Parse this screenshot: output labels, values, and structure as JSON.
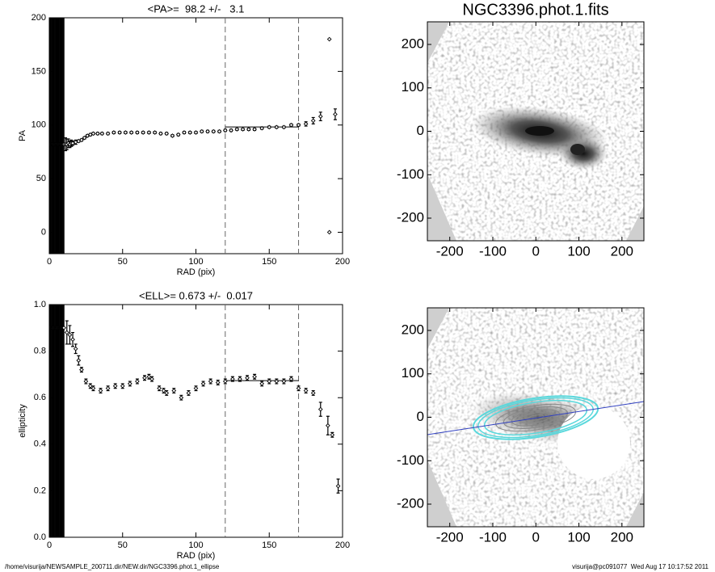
{
  "chart_data": [
    {
      "type": "scatter",
      "title": "<PA>=  98.2 +/-   3.1",
      "xlabel": "RAD (pix)",
      "ylabel": "PA",
      "xlim": [
        0,
        200
      ],
      "ylim": [
        -20,
        200
      ],
      "xticks": [
        0,
        50,
        100,
        150,
        200
      ],
      "yticks": [
        0,
        50,
        100,
        150,
        200
      ],
      "x": [
        0.5,
        1,
        1.5,
        2,
        2.5,
        3,
        3.5,
        4,
        4.5,
        5,
        5.5,
        6,
        6.5,
        7,
        7.5,
        8,
        8.5,
        9,
        9.5,
        10,
        11,
        12,
        13,
        14,
        15,
        16,
        18,
        20,
        22,
        24,
        26,
        28,
        30,
        33,
        36,
        40,
        44,
        48,
        52,
        56,
        60,
        64,
        68,
        72,
        76,
        80,
        84,
        88,
        92,
        96,
        100,
        104,
        108,
        112,
        116,
        120,
        124,
        128,
        132,
        136,
        140,
        145,
        150,
        155,
        160,
        165,
        170,
        175,
        180,
        185,
        191,
        191,
        195
      ],
      "values": [
        82,
        82,
        82,
        82,
        82,
        82,
        82,
        82,
        82,
        82,
        82,
        82,
        82,
        82,
        82,
        82,
        82,
        82,
        82,
        82,
        82,
        82,
        83,
        82,
        83,
        83,
        84,
        85,
        86,
        88,
        90,
        91,
        92,
        92,
        92,
        92,
        93,
        93,
        93,
        93,
        93,
        93,
        93,
        93,
        92,
        92,
        90,
        91,
        93,
        93,
        93,
        94,
        94,
        94,
        94,
        95,
        95,
        96,
        96,
        96,
        96,
        97,
        98,
        98,
        98,
        100,
        100,
        101,
        104,
        108,
        180,
        0,
        110
      ],
      "errors": [
        250,
        250,
        250,
        250,
        250,
        250,
        250,
        250,
        250,
        250,
        250,
        250,
        250,
        250,
        250,
        250,
        250,
        250,
        250,
        250,
        6,
        5,
        4,
        3,
        3,
        2,
        2,
        1,
        1,
        1,
        1,
        1,
        1,
        1,
        1,
        1,
        1,
        1,
        1,
        1,
        1,
        1,
        1,
        1,
        1,
        1,
        1,
        1,
        1,
        1,
        1,
        1,
        1,
        1,
        1,
        1,
        1,
        1,
        1,
        1,
        1,
        1,
        1,
        1,
        1,
        1,
        1,
        2,
        3,
        4,
        0,
        0,
        5
      ],
      "vlines": [
        120,
        170
      ],
      "fit": {
        "x": [
          120,
          170
        ],
        "y": 98.2
      }
    },
    {
      "type": "scatter",
      "title": "<ELL>= 0.673 +/-  0.017",
      "xlabel": "RAD (pix)",
      "ylabel": "ellipticity",
      "xlim": [
        0,
        200
      ],
      "ylim": [
        0,
        1
      ],
      "xticks": [
        0,
        50,
        100,
        150,
        200
      ],
      "yticks": [
        {
          "value": 0,
          "label": "0.0"
        },
        0.2,
        0.4,
        0.6,
        0.8,
        {
          "value": 1,
          "label": "1.0"
        }
      ],
      "x": [
        0.5,
        1,
        1.5,
        2,
        2.5,
        3,
        3.5,
        4,
        4.5,
        5,
        5.5,
        6,
        6.5,
        7,
        7.5,
        8,
        8.5,
        9,
        9.5,
        10,
        12,
        14,
        16,
        18,
        20,
        22,
        25,
        28,
        30,
        35,
        40,
        45,
        50,
        55,
        60,
        65,
        68,
        70,
        75,
        78,
        80,
        85,
        90,
        95,
        100,
        105,
        110,
        115,
        120,
        125,
        130,
        135,
        140,
        145,
        150,
        155,
        160,
        165,
        170,
        175,
        180,
        185,
        190,
        193,
        197
      ],
      "values": [
        0.9,
        0.9,
        0.9,
        0.9,
        0.9,
        0.9,
        0.9,
        0.9,
        0.9,
        0.9,
        0.9,
        0.9,
        0.9,
        0.9,
        0.9,
        0.9,
        0.9,
        0.9,
        0.9,
        0.9,
        0.88,
        0.87,
        0.85,
        0.81,
        0.76,
        0.72,
        0.67,
        0.65,
        0.64,
        0.63,
        0.64,
        0.65,
        0.65,
        0.66,
        0.67,
        0.685,
        0.69,
        0.68,
        0.64,
        0.63,
        0.62,
        0.63,
        0.6,
        0.62,
        0.64,
        0.66,
        0.67,
        0.665,
        0.67,
        0.68,
        0.68,
        0.685,
        0.69,
        0.66,
        0.67,
        0.67,
        0.67,
        0.68,
        0.64,
        0.63,
        0.62,
        0.55,
        0.48,
        0.44,
        0.22
      ],
      "errors": [
        1,
        1,
        1,
        1,
        1,
        1,
        1,
        1,
        1,
        1,
        1,
        1,
        1,
        1,
        1,
        1,
        1,
        1,
        1,
        1,
        0.05,
        0.04,
        0.03,
        0.02,
        0.02,
        0.01,
        0.01,
        0.01,
        0.01,
        0.01,
        0.01,
        0.01,
        0.01,
        0.01,
        0.01,
        0.01,
        0.01,
        0.01,
        0.01,
        0.01,
        0.01,
        0.01,
        0.01,
        0.01,
        0.01,
        0.01,
        0.01,
        0.01,
        0.01,
        0.01,
        0.01,
        0.01,
        0.01,
        0.01,
        0.01,
        0.01,
        0.01,
        0.01,
        0.01,
        0.01,
        0.01,
        0.03,
        0.04,
        0.01,
        0.03
      ],
      "vlines": [
        120,
        170
      ],
      "fit": {
        "x": [
          120,
          170
        ],
        "y": 0.673
      }
    },
    {
      "type": "image",
      "title": "NGC3396.phot.1.fits",
      "xlim": [
        -252,
        251
      ],
      "ylim": [
        -252,
        252
      ],
      "xticks": [
        -200,
        -100,
        0,
        100,
        200
      ],
      "yticks": [
        -200,
        -100,
        0,
        100,
        200
      ]
    },
    {
      "type": "image",
      "xlim": [
        -252,
        251
      ],
      "ylim": [
        -252,
        252
      ],
      "xticks": [
        -200,
        -100,
        0,
        100,
        200
      ],
      "yticks": [
        -200,
        -100,
        0,
        100,
        200
      ]
    }
  ],
  "footer": {
    "left": "/home/visurija/NEWSAMPLE_200711.dir/NEW.dir/NGC3396.phot.1_ellipse",
    "right": "visurija@pc091077  Wed Aug 17 10:17:52 2011"
  }
}
